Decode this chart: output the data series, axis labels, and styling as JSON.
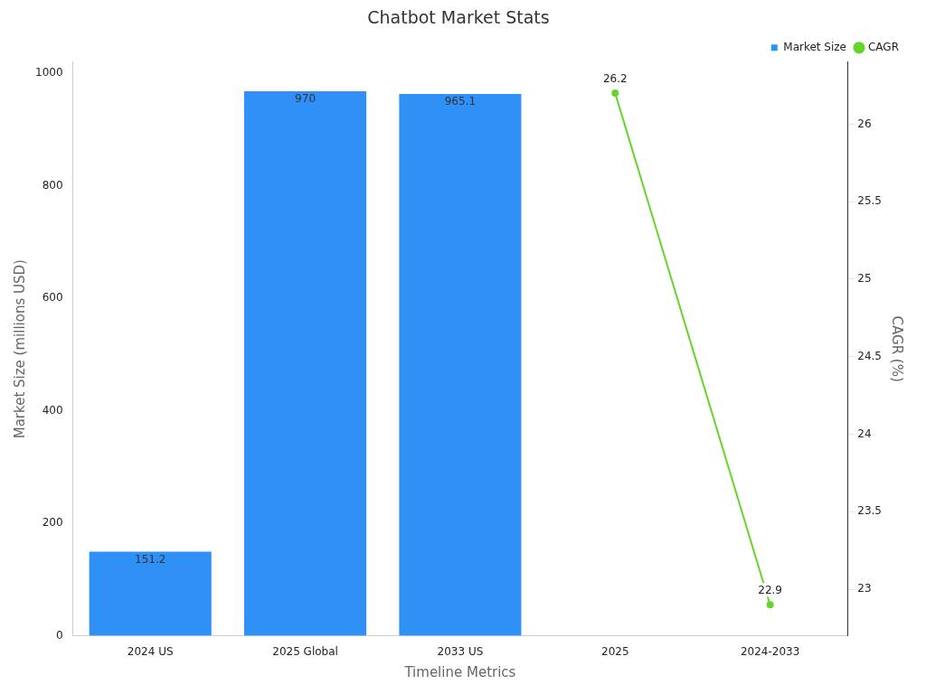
{
  "chart_data": {
    "type": "bar",
    "title": "Chatbot Market Stats",
    "xlabel": "Timeline Metrics",
    "ylabel": "Market Size (millions USD)",
    "y2label": "CAGR (%)",
    "categories": [
      "2024 US",
      "2025 Global",
      "2033 US",
      "2025",
      "2024-2033"
    ],
    "series": [
      {
        "name": "Market Size",
        "color": "#2f91f8",
        "values": [
          151.2,
          970,
          965.1,
          null,
          null
        ]
      },
      {
        "name": "CAGR",
        "type": "line",
        "axis": "y2",
        "color": "#66d52a",
        "values": [
          null,
          null,
          null,
          26.2,
          22.9
        ]
      }
    ],
    "ylim": [
      0,
      1020
    ],
    "yticks": [
      0,
      200,
      400,
      600,
      800,
      1000
    ],
    "y2lim": [
      22.7,
      26.4
    ],
    "y2ticks": [
      23,
      23.5,
      24,
      24.5,
      25,
      25.5,
      26
    ],
    "data_labels": true,
    "legend": "top right",
    "grid": false,
    "marker": "circle",
    "line_style": "solid"
  }
}
